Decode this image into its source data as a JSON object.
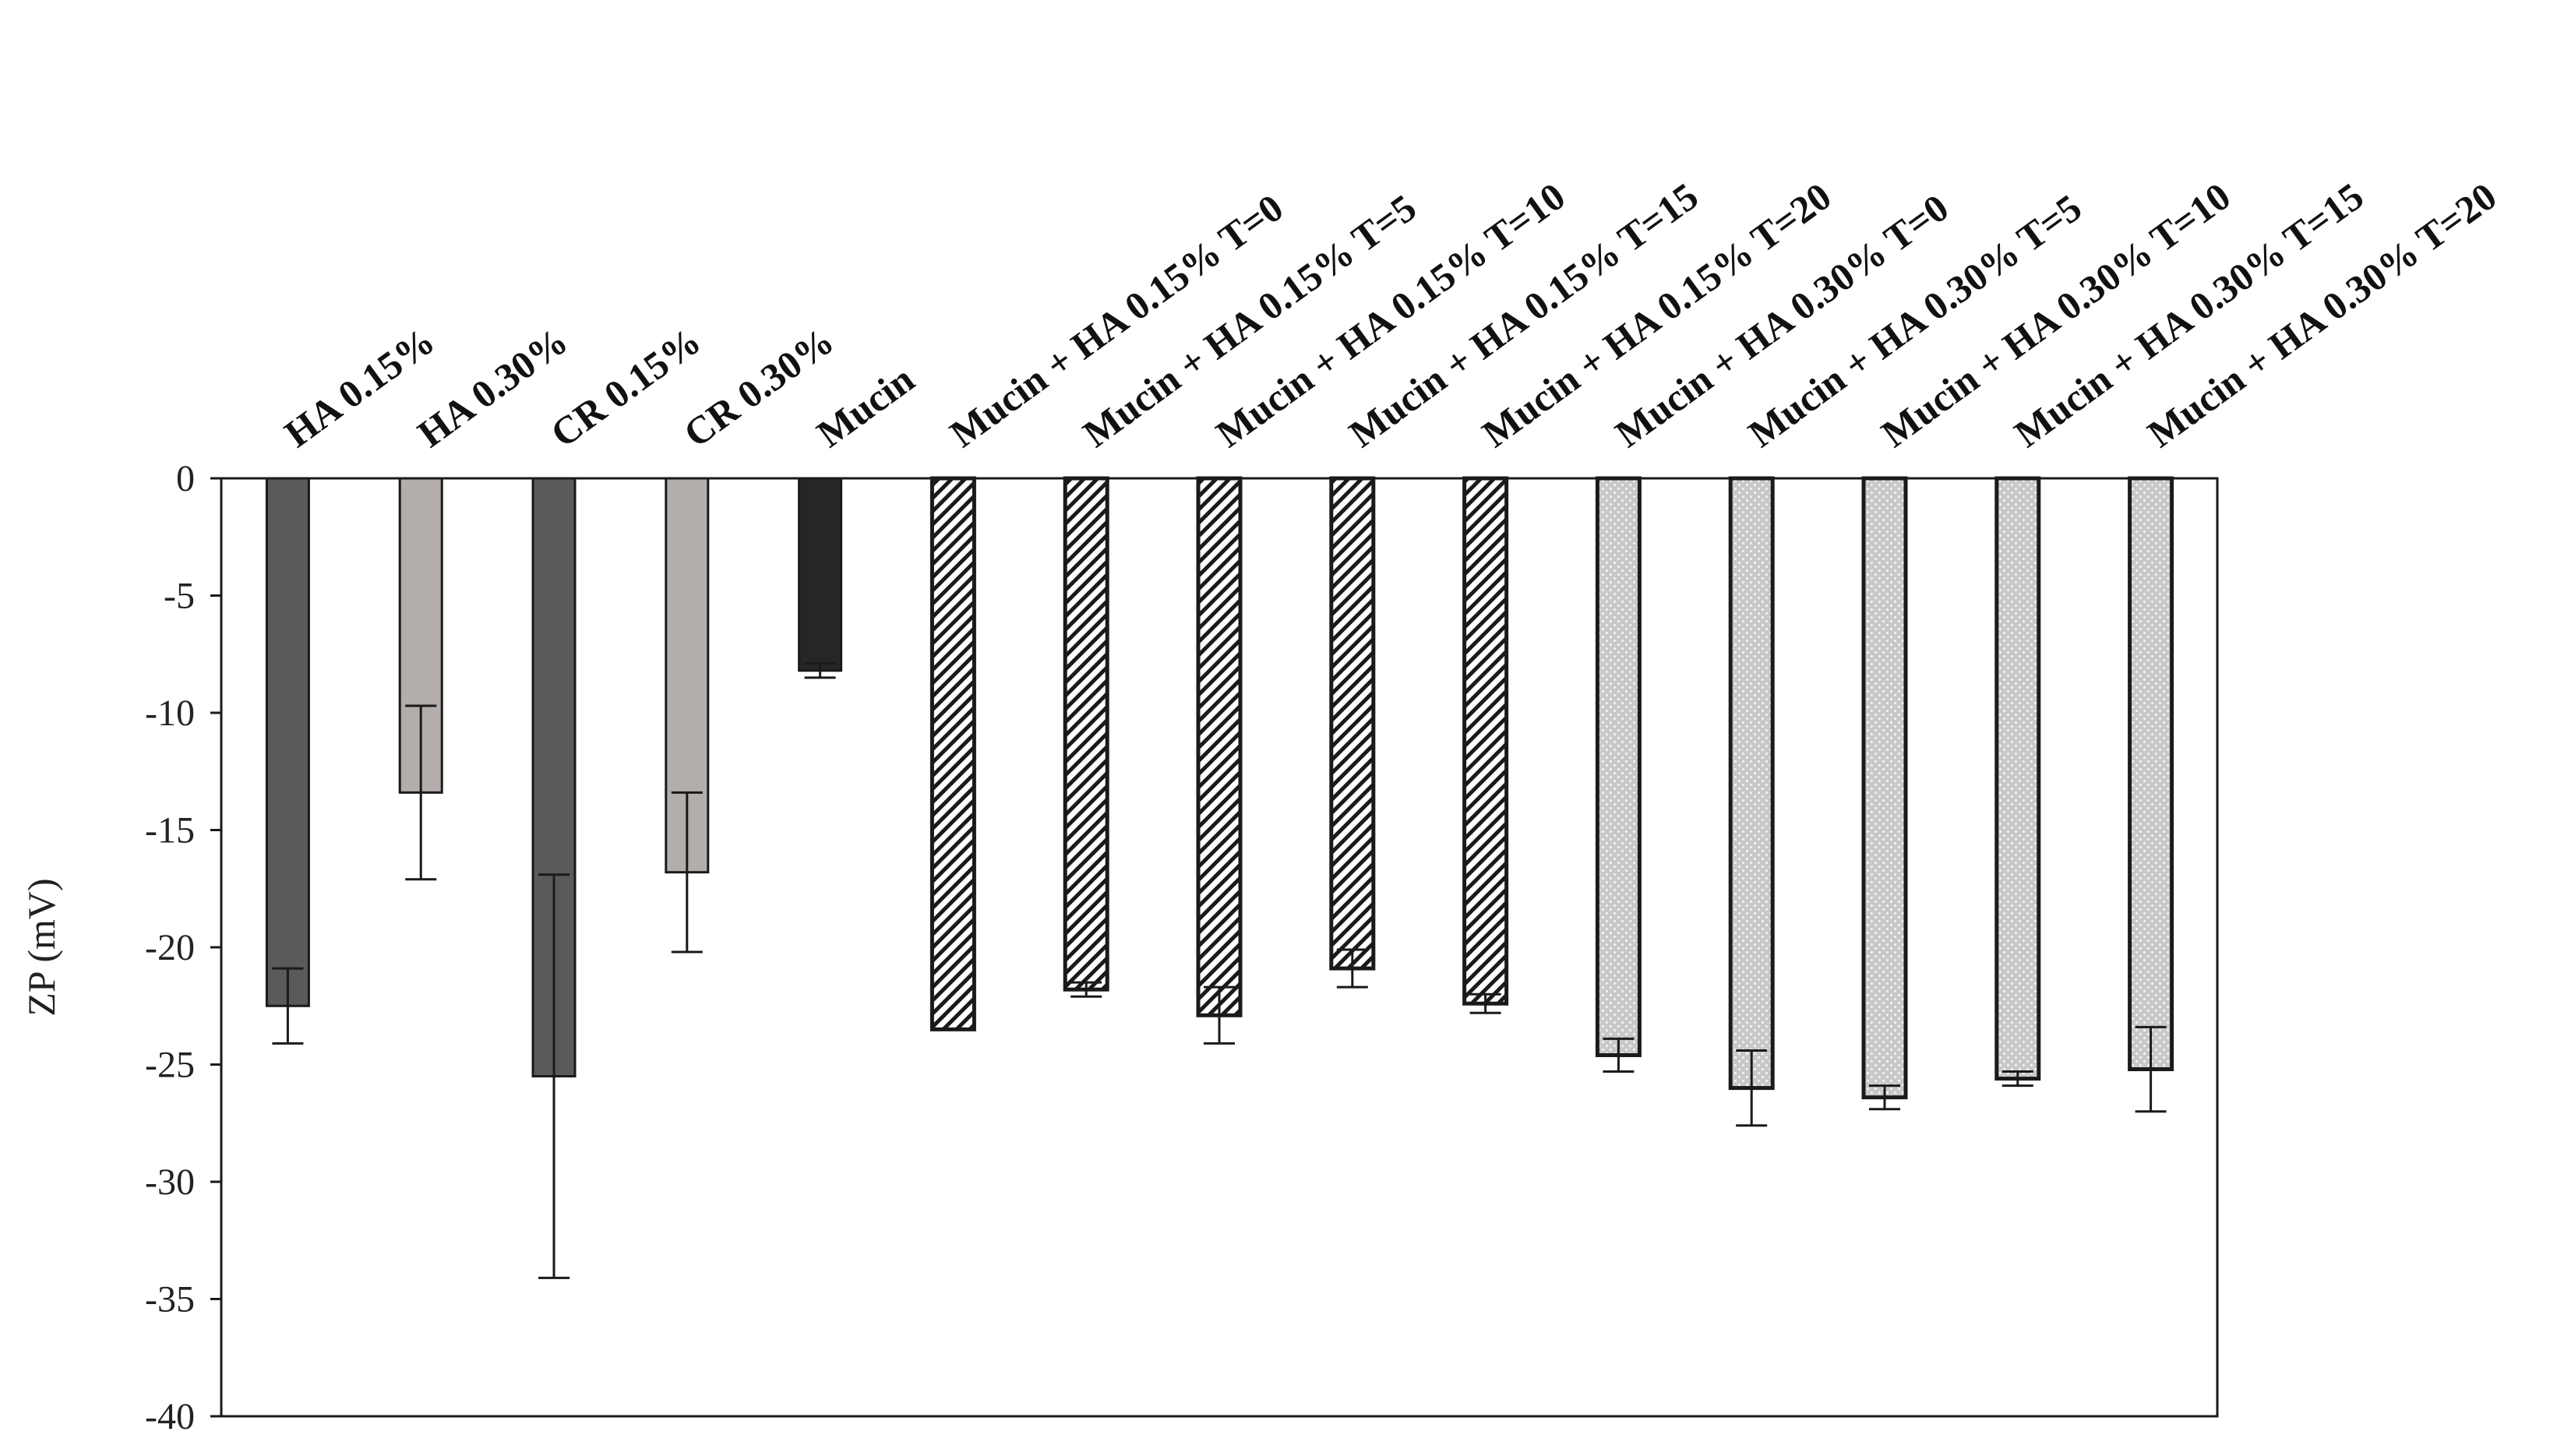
{
  "chart_data": {
    "type": "bar",
    "title": "",
    "xlabel": "",
    "ylabel": "ZP (mV)",
    "ylim": [
      -40,
      0
    ],
    "yticks": [
      0,
      -5,
      -10,
      -15,
      -20,
      -25,
      -30,
      -35,
      -40
    ],
    "grid": false,
    "legend": "none",
    "categories": [
      "HA 0.15%",
      "HA 0.30%",
      "CR 0.15%",
      "CR 0.30%",
      "Mucin",
      "Mucin + HA 0.15% T=0",
      "Mucin + HA 0.15% T=5",
      "Mucin + HA 0.15% T=10",
      "Mucin + HA 0.15% T=15",
      "Mucin + HA 0.15% T=20",
      "Mucin + HA 0.30% T=0",
      "Mucin + HA 0.30% T=5",
      "Mucin + HA 0.30% T=10",
      "Mucin + HA 0.30% T=15",
      "Mucin + HA 0.30% T=20"
    ],
    "values": [
      -22.5,
      -13.4,
      -25.5,
      -16.8,
      -8.2,
      -23.5,
      -21.8,
      -22.9,
      -20.9,
      -22.4,
      -24.6,
      -26.0,
      -26.4,
      -25.6,
      -25.2
    ],
    "errors": [
      1.6,
      3.7,
      8.6,
      3.4,
      0.3,
      0.0,
      0.3,
      1.2,
      0.8,
      0.4,
      0.7,
      1.6,
      0.5,
      0.3,
      1.8
    ],
    "bar_styles": [
      "dark",
      "light",
      "dark",
      "light",
      "black",
      "hatch",
      "hatch",
      "hatch",
      "hatch",
      "hatch",
      "dots",
      "dots",
      "dots",
      "dots",
      "dots"
    ],
    "colors": {
      "dark": "#5a5a5a",
      "light": "#b3adab",
      "black": "#262626",
      "hatch_fill": "#ffffff",
      "hatch_line": "#1a1a1a",
      "dots_fill": "#c8c8c8",
      "dots_dot": "#f2f2f2",
      "bar_outline": "#1a1a1a",
      "axis": "#1a1a1a"
    }
  }
}
